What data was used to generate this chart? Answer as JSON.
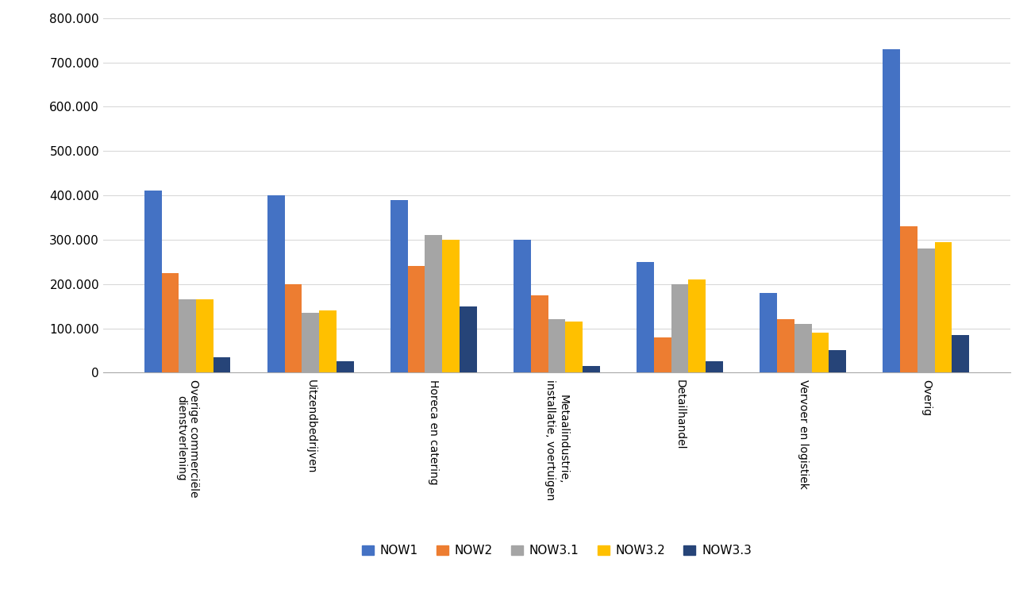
{
  "categories": [
    "Overige commerciële\ndienstverlening",
    "Uitzendbedrijven",
    "Horeca en catering",
    "Metaalindustrie,\ninstallatie, voertuigen",
    "Detailhandel",
    "Vervoer en logistiek",
    "Overig"
  ],
  "series": {
    "NOW1": [
      410000,
      400000,
      390000,
      300000,
      250000,
      180000,
      730000
    ],
    "NOW2": [
      225000,
      200000,
      240000,
      175000,
      80000,
      120000,
      330000
    ],
    "NOW3.1": [
      165000,
      135000,
      310000,
      120000,
      200000,
      110000,
      280000
    ],
    "NOW3.2": [
      165000,
      140000,
      300000,
      115000,
      210000,
      90000,
      295000
    ],
    "NOW3.3": [
      35000,
      25000,
      150000,
      15000,
      25000,
      50000,
      85000
    ]
  },
  "colors": {
    "NOW1": "#4472C4",
    "NOW2": "#ED7D31",
    "NOW3.1": "#A5A5A5",
    "NOW3.2": "#FFC000",
    "NOW3.3": "#264478"
  },
  "ylim": [
    0,
    800000
  ],
  "yticks": [
    0,
    100000,
    200000,
    300000,
    400000,
    500000,
    600000,
    700000,
    800000
  ],
  "ytick_labels": [
    "0",
    "100.000",
    "200.000",
    "300.000",
    "400.000",
    "500.000",
    "600.000",
    "700.000",
    "800.000"
  ],
  "bar_width": 0.14,
  "legend_order": [
    "NOW1",
    "NOW2",
    "NOW3.1",
    "NOW3.2",
    "NOW3.3"
  ],
  "grid_color": "#D9D9D9",
  "background_color": "#FFFFFF"
}
